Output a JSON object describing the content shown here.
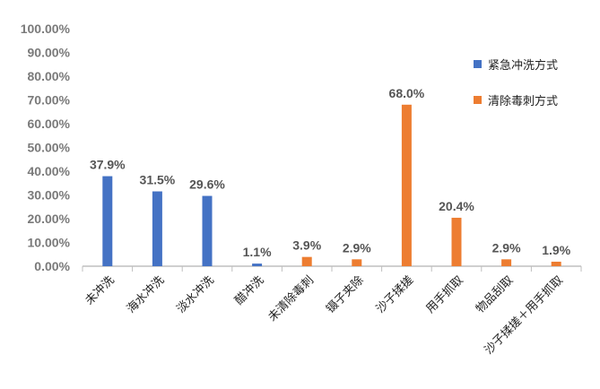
{
  "chart_data": {
    "type": "bar",
    "title": "",
    "xlabel": "",
    "ylabel": "",
    "ylim": [
      0,
      100
    ],
    "yticks": [
      "0.00%",
      "10.00%",
      "20.00%",
      "30.00%",
      "40.00%",
      "50.00%",
      "60.00%",
      "70.00%",
      "80.00%",
      "90.00%",
      "100.00%"
    ],
    "legend_position": "right",
    "categories": [
      "未冲洗",
      "海水冲洗",
      "淡水冲洗",
      "醋冲洗",
      "未清除毒刺",
      "镊子夹除",
      "沙子揉搓",
      "用手抓取",
      "物品刮取",
      "沙子揉搓＋用手抓取"
    ],
    "series": [
      {
        "name": "紧急冲洗方式",
        "color": "#4472c4",
        "values": [
          37.9,
          31.5,
          29.6,
          1.1,
          null,
          null,
          null,
          null,
          null,
          null
        ]
      },
      {
        "name": "清除毒刺方式",
        "color": "#ed7d31",
        "values": [
          null,
          null,
          null,
          null,
          3.9,
          2.9,
          68.0,
          20.4,
          2.9,
          1.9
        ]
      }
    ],
    "data_labels": [
      "37.9%",
      "31.5%",
      "29.6%",
      "1.1%",
      "3.9%",
      "2.9%",
      "68.0%",
      "20.4%",
      "2.9%",
      "1.9%"
    ]
  }
}
